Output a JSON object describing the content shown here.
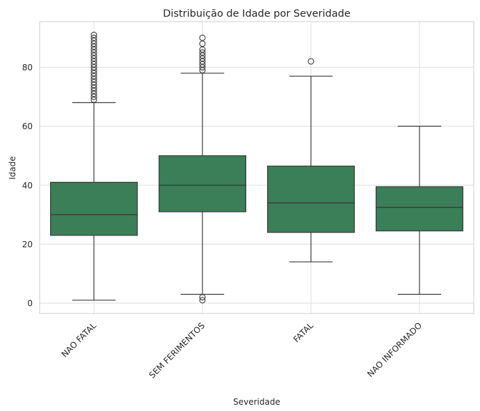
{
  "chart_data": {
    "type": "boxplot",
    "title": "Distribuição de Idade por Severidade",
    "xlabel": "Severidade",
    "ylabel": "Idade",
    "ylim": [
      -3.5,
      95.5
    ],
    "yticks": [
      0,
      20,
      40,
      60,
      80
    ],
    "grid": true,
    "box_color": "#3a7f57",
    "categories": [
      "NAO FATAL",
      "SEM FERIMENTOS",
      "FATAL",
      "NAO INFORMADO"
    ],
    "boxes": [
      {
        "whisker_low": 1,
        "q1": 23,
        "median": 30,
        "q3": 41,
        "whisker_high": 68,
        "outliers": [
          69,
          70,
          71,
          72,
          73,
          74,
          75,
          76,
          77,
          78,
          79,
          80,
          81,
          82,
          83,
          84,
          85,
          86,
          87,
          88,
          89,
          90,
          91
        ]
      },
      {
        "whisker_low": 3,
        "q1": 31,
        "median": 40,
        "q3": 50,
        "whisker_high": 78,
        "outliers": [
          1,
          2,
          79,
          80,
          81,
          82,
          83,
          84,
          85,
          86,
          88,
          90
        ]
      },
      {
        "whisker_low": 14,
        "q1": 24,
        "median": 34,
        "q3": 46.5,
        "whisker_high": 77,
        "outliers": [
          82
        ]
      },
      {
        "whisker_low": 3,
        "q1": 24.5,
        "median": 32.5,
        "q3": 39.5,
        "whisker_high": 60,
        "outliers": []
      }
    ]
  }
}
